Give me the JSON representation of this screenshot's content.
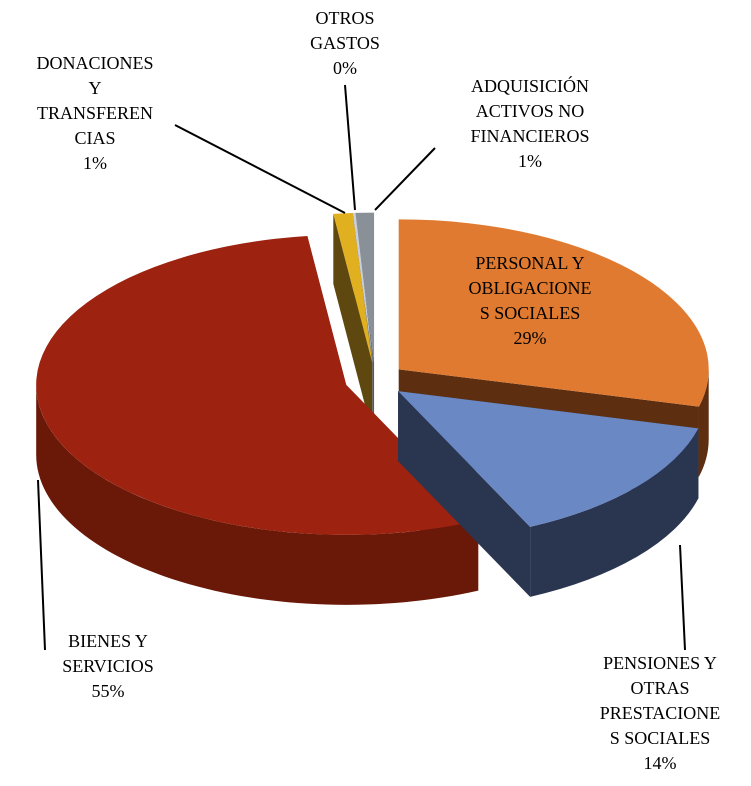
{
  "chart_data": {
    "type": "pie3d",
    "categories": [
      [
        "PERSONAL Y",
        "OBLIGACIONE",
        "S SOCIALES"
      ],
      [
        "PENSIONES Y",
        "OTRAS",
        "PRESTACIONE",
        "S SOCIALES"
      ],
      [
        "BIENES Y",
        "SERVICIOS"
      ],
      [
        "DONACIONES",
        "Y",
        "TRANSFEREN",
        "CIAS"
      ],
      [
        "OTROS",
        "GASTOS"
      ],
      [
        "ADQUISICIÓN",
        "ACTIVOS NO",
        "FINANCIEROS"
      ]
    ],
    "values": [
      29,
      14,
      55,
      1,
      0,
      1
    ],
    "value_labels": [
      "29%",
      "14%",
      "55%",
      "1%",
      "0%",
      "1%"
    ],
    "colors": [
      "#e07a30",
      "#6a88c4",
      "#9e2210",
      "#e0b020",
      "#c8d0e0",
      "#8a9098"
    ],
    "side_colors": [
      "#5e2e10",
      "#2a3550",
      "#6a1808",
      "#5e4810",
      "#7a808c",
      "#4a5058"
    ]
  }
}
